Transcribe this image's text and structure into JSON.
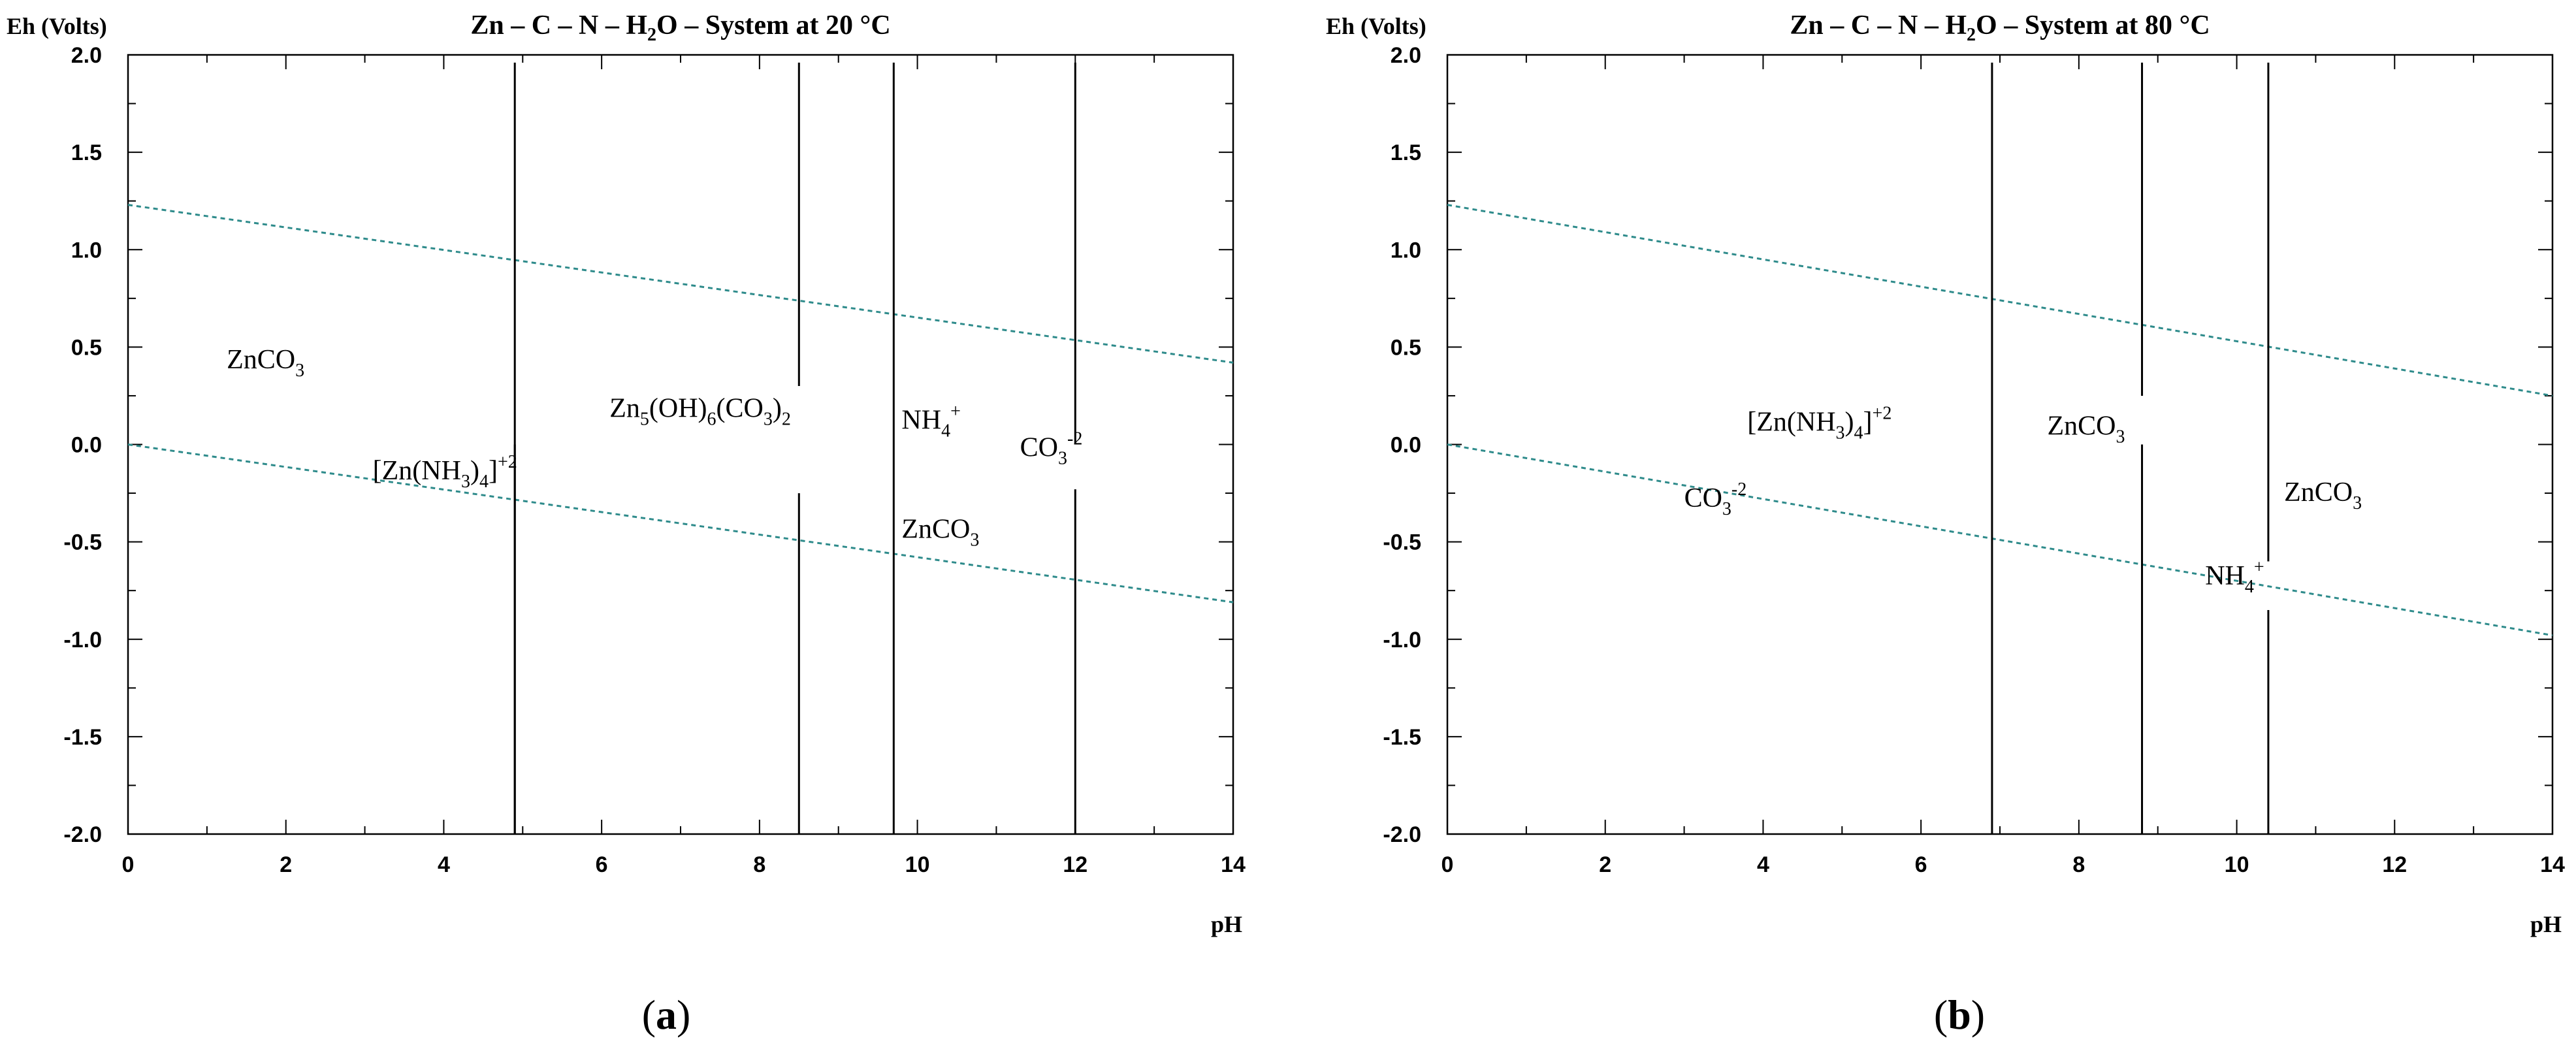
{
  "chart_data": [
    {
      "panel": "(a)",
      "panel_paren_open": "(",
      "panel_letter": "a",
      "panel_paren_close": ")",
      "type": "line",
      "title": "Zn – C – N – H₂O – System at 20 °C",
      "title_parts": [
        "Zn – C – N – H",
        "2",
        "O – System at 20 °C"
      ],
      "xlabel": "pH",
      "ylabel": "Eh (Volts)",
      "xlim": [
        0,
        14
      ],
      "ylim": [
        -2.0,
        2.0
      ],
      "xticks": [
        0,
        2,
        4,
        6,
        8,
        10,
        12,
        14
      ],
      "yticks": [
        2.0,
        1.5,
        1.0,
        0.5,
        0.0,
        -0.5,
        -1.0,
        -1.5,
        -2.0
      ],
      "ytick_labels": [
        "2.0",
        "1.5",
        "1.0",
        "0.5",
        "0.0",
        "-0.5",
        "-1.0",
        "-1.5",
        "-2.0"
      ],
      "grid": false,
      "water_stability_lines": [
        {
          "x": [
            0,
            14
          ],
          "y": [
            1.23,
            0.42
          ],
          "color": "#2e8b8b"
        },
        {
          "x": [
            0,
            14
          ],
          "y": [
            0.0,
            -0.81
          ],
          "color": "#2e8b8b"
        }
      ],
      "boundaries": [
        {
          "x": 4.9,
          "y_segments": [
            [
              -2.0,
              1.96
            ],
            [
              -2.0,
              0.0
            ]
          ]
        },
        {
          "x": 8.5,
          "y_segments": [
            [
              -2.0,
              -0.25
            ],
            [
              0.3,
              1.96
            ]
          ]
        },
        {
          "x": 9.7,
          "y_segments": [
            [
              -2.0,
              1.96
            ]
          ]
        },
        {
          "x": 12.0,
          "y_segments": [
            [
              -2.0,
              -0.23
            ],
            [
              0.0,
              1.96
            ]
          ]
        }
      ],
      "species_labels": [
        {
          "parts": [
            [
              "ZnCO",
              ""
            ],
            [
              "3",
              "sub"
            ]
          ],
          "x": 1.25,
          "y": 0.39
        },
        {
          "parts": [
            [
              "[Zn(NH",
              ""
            ],
            [
              "3",
              "sub"
            ],
            [
              ")",
              ""
            ],
            [
              "4",
              "sub"
            ],
            [
              "]",
              ""
            ],
            [
              "+2",
              "sup"
            ]
          ],
          "x": 3.1,
          "y": -0.18
        },
        {
          "parts": [
            [
              "Zn",
              ""
            ],
            [
              "5",
              "sub"
            ],
            [
              "(OH)",
              ""
            ],
            [
              "6",
              "sub"
            ],
            [
              "(CO",
              ""
            ],
            [
              "3",
              "sub"
            ],
            [
              ")",
              ""
            ],
            [
              "2",
              "sub"
            ]
          ],
          "x": 6.1,
          "y": 0.14
        },
        {
          "parts": [
            [
              "NH",
              ""
            ],
            [
              "4",
              "sub"
            ],
            [
              "+",
              "sup"
            ]
          ],
          "x": 9.8,
          "y": 0.08
        },
        {
          "parts": [
            [
              "CO",
              ""
            ],
            [
              "3",
              "sub"
            ],
            [
              "-2",
              "sup"
            ]
          ],
          "x": 11.3,
          "y": -0.06
        },
        {
          "parts": [
            [
              "ZnCO",
              ""
            ],
            [
              "3",
              "sub"
            ]
          ],
          "x": 9.8,
          "y": -0.48
        }
      ]
    },
    {
      "panel": "(b)",
      "panel_paren_open": "(",
      "panel_letter": "b",
      "panel_paren_close": ")",
      "type": "line",
      "title": "Zn – C – N – H₂O – System at 80 °C",
      "title_parts": [
        "Zn – C – N – H",
        "2",
        "O – System at 80 °C"
      ],
      "xlabel": "pH",
      "ylabel": "Eh (Volts)",
      "xlim": [
        0,
        14
      ],
      "ylim": [
        -2.0,
        2.0
      ],
      "xticks": [
        0,
        2,
        4,
        6,
        8,
        10,
        12,
        14
      ],
      "yticks": [
        2.0,
        1.5,
        1.0,
        0.5,
        0.0,
        -0.5,
        -1.0,
        -1.5,
        -2.0
      ],
      "ytick_labels": [
        "2.0",
        "1.5",
        "1.0",
        "0.5",
        "0.0",
        "-0.5",
        "-1.0",
        "-1.5",
        "-2.0"
      ],
      "grid": false,
      "water_stability_lines": [
        {
          "x": [
            0,
            14
          ],
          "y": [
            1.23,
            0.25
          ],
          "color": "#2e8b8b"
        },
        {
          "x": [
            0,
            14
          ],
          "y": [
            0.0,
            -0.98
          ],
          "color": "#2e8b8b"
        }
      ],
      "boundaries": [
        {
          "x": 6.9,
          "y_segments": [
            [
              -2.0,
              1.96
            ]
          ]
        },
        {
          "x": 8.8,
          "y_segments": [
            [
              -2.0,
              0.0
            ],
            [
              0.25,
              1.96
            ]
          ]
        },
        {
          "x": 10.4,
          "y_segments": [
            [
              -2.0,
              -0.85
            ],
            [
              -0.6,
              1.96
            ]
          ]
        }
      ],
      "species_labels": [
        {
          "parts": [
            [
              "[Zn(NH",
              ""
            ],
            [
              "3",
              "sub"
            ],
            [
              ")",
              ""
            ],
            [
              "4",
              "sub"
            ],
            [
              "]",
              ""
            ],
            [
              "+2",
              "sup"
            ]
          ],
          "x": 3.8,
          "y": 0.07
        },
        {
          "parts": [
            [
              "ZnCO",
              ""
            ],
            [
              "3",
              "sub"
            ]
          ],
          "x": 7.6,
          "y": 0.05
        },
        {
          "parts": [
            [
              "CO",
              ""
            ],
            [
              "3",
              "sub"
            ],
            [
              "-2",
              "sup"
            ]
          ],
          "x": 3.0,
          "y": -0.32
        },
        {
          "parts": [
            [
              "ZnCO",
              ""
            ],
            [
              "3",
              "sub"
            ]
          ],
          "x": 10.6,
          "y": -0.29
        },
        {
          "parts": [
            [
              "NH",
              ""
            ],
            [
              "4",
              "sub"
            ],
            [
              "+",
              "sup"
            ]
          ],
          "x": 9.6,
          "y": -0.72
        }
      ]
    }
  ]
}
